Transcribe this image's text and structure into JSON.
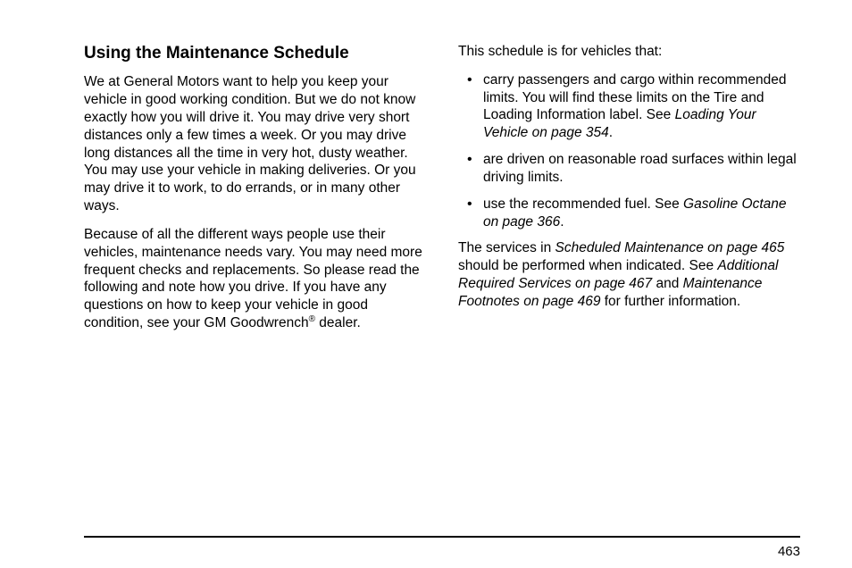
{
  "heading": "Using the Maintenance Schedule",
  "left": {
    "p1": "We at General Motors want to help you keep your vehicle in good working condition. But we do not know exactly how you will drive it. You may drive very short distances only a few times a week. Or you may drive long distances all the time in very hot, dusty weather. You may use your vehicle in making deliveries. Or you may drive it to work, to do errands, or in many other ways.",
    "p2a": "Because of all the different ways people use their vehicles, maintenance needs vary. You may need more frequent checks and replacements. So please read the following and note how you drive. If you have any questions on how to keep your vehicle in good condition, see your GM Goodwrench",
    "p2sup": "®",
    "p2b": " dealer."
  },
  "right": {
    "intro": "This schedule is for vehicles that:",
    "bullets": {
      "b1a": "carry passengers and cargo within recommended limits. You will find these limits on the Tire and Loading Information label. See ",
      "b1i": "Loading Your Vehicle on page 354",
      "b1b": ".",
      "b2": "are driven on reasonable road surfaces within legal driving limits.",
      "b3a": "use the recommended fuel. See ",
      "b3i": "Gasoline Octane on page 366",
      "b3b": "."
    },
    "closing": {
      "c1": "The services in ",
      "c2": "Scheduled Maintenance on page 465",
      "c3": " should be performed when indicated. See ",
      "c4": "Additional Required Services on page 467",
      "c5": " and ",
      "c6": "Maintenance Footnotes on page 469",
      "c7": " for further information."
    }
  },
  "pageNumber": "463"
}
